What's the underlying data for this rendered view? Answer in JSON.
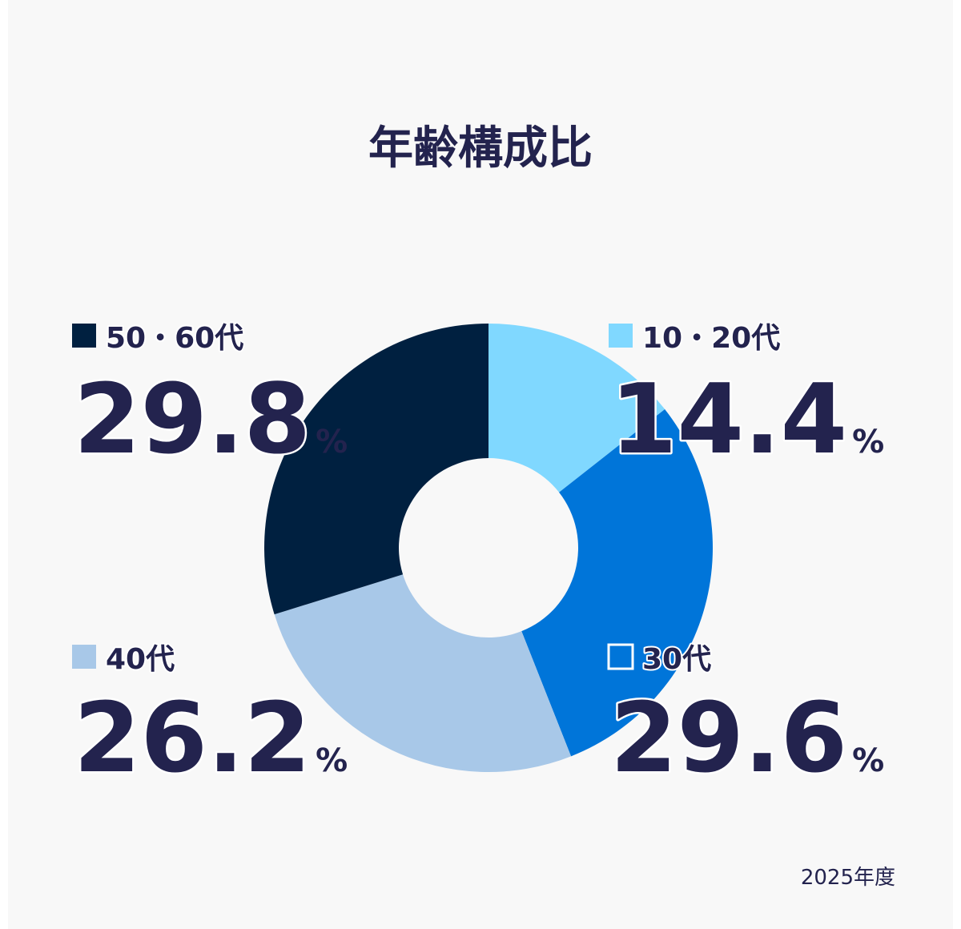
{
  "chart_data": {
    "type": "donut",
    "title": "年齢構成比",
    "note": "2025年度",
    "unit": "%",
    "categories": [
      "10・20代",
      "30代",
      "40代",
      "50・60代"
    ],
    "values": [
      14.4,
      29.6,
      26.2,
      29.8
    ],
    "colors": [
      "#80d8ff",
      "#0075d9",
      "#a8c8e8",
      "#002040"
    ]
  }
}
